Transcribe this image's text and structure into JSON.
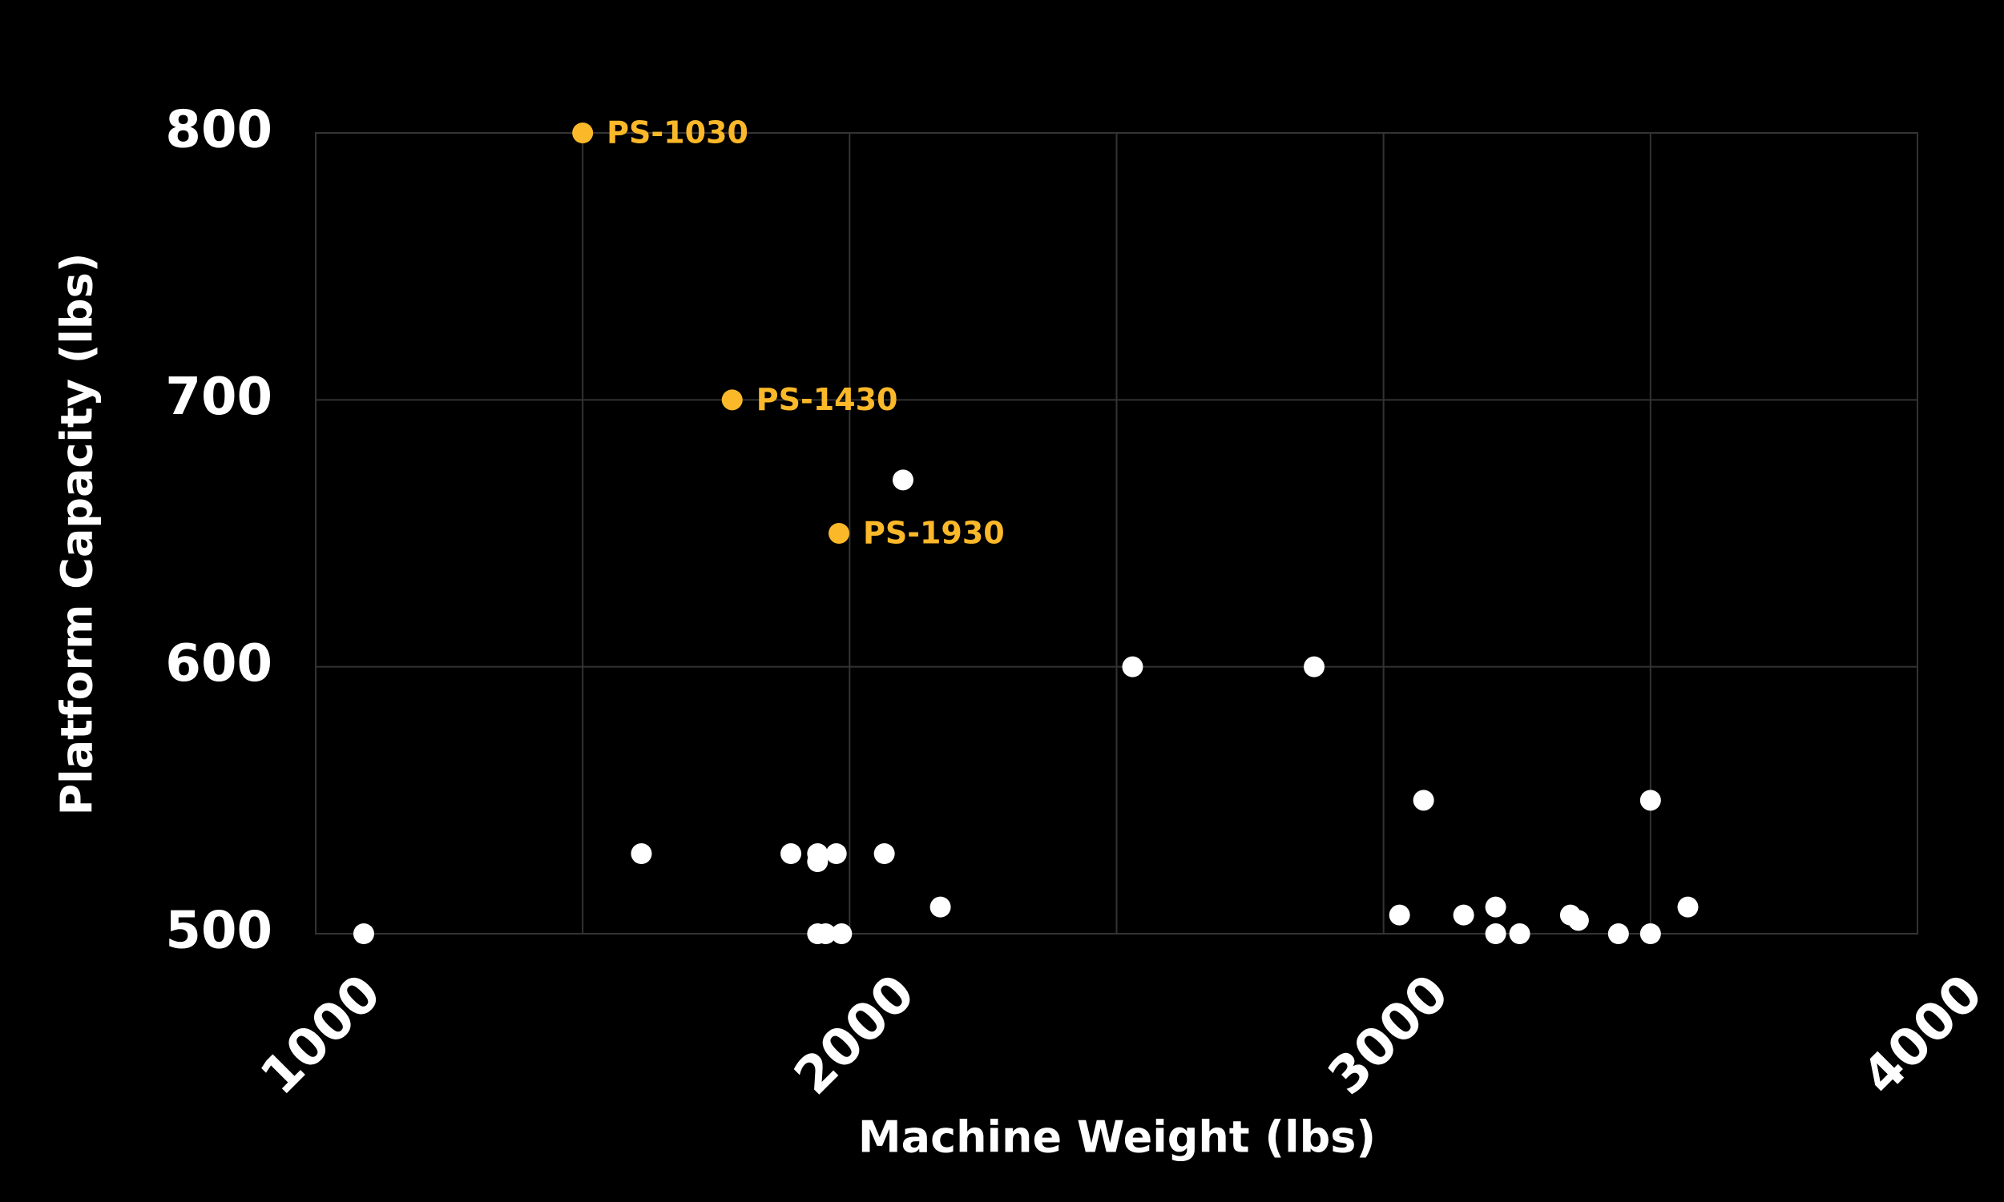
{
  "chart_data": {
    "type": "scatter",
    "x_label": "Machine Weight (lbs)",
    "y_label": "Platform Capacity (lbs)",
    "xlim": [
      1000,
      4000
    ],
    "xticks": [
      1000,
      2000,
      3000,
      4000
    ],
    "x_minor_ticks": [
      1500,
      2500,
      3500
    ],
    "ylim": [
      500,
      800
    ],
    "yticks": [
      500,
      600,
      700,
      800
    ],
    "grid": true,
    "grid_color": "#333333",
    "series": [
      {
        "color": "#ffffff",
        "x": [
          1090,
          1610,
          2100,
          2530,
          2870,
          3075,
          3500,
          1890,
          1940,
          1940,
          1975,
          2065,
          2170,
          1940,
          1955,
          1985,
          3030,
          3150,
          3210,
          3210,
          3255,
          3350,
          3365,
          3440,
          3500,
          3570
        ],
        "values": [
          500,
          530,
          670,
          600,
          600,
          550,
          550,
          530,
          530,
          527,
          530,
          530,
          510,
          500,
          500,
          500,
          507,
          507,
          510,
          500,
          500,
          507,
          505,
          500,
          500,
          510
        ]
      },
      {
        "color": "#fbb829",
        "x": [
          1500,
          1780,
          1980
        ],
        "values": [
          800,
          700,
          650
        ],
        "point_labels": [
          "PS-1030",
          "PS-1430",
          "PS-1930"
        ]
      }
    ]
  }
}
